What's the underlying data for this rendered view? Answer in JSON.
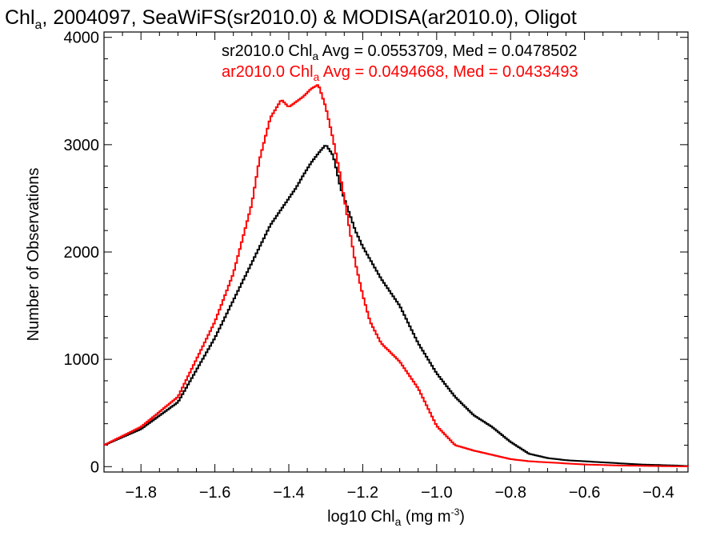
{
  "chart_data": {
    "type": "line",
    "title": {
      "prefix": "Chl",
      "sub": "a",
      "rest": ", 2004097, SeaWiFS(sr2010.0) & MODISA(ar2010.0), Oligot"
    },
    "xlabel": {
      "prefix": "log10 Chl",
      "sub": "a",
      "mid": " (mg m",
      "sup": "-3",
      "end": ")"
    },
    "ylabel": "Number of Observations",
    "xlim": [
      -1.9,
      -0.32
    ],
    "ylim": [
      -50,
      4050
    ],
    "x_ticks": [
      -1.8,
      -1.6,
      -1.4,
      -1.2,
      -1.0,
      -0.8,
      -0.6,
      -0.4
    ],
    "x_tick_labels": [
      "−1.8",
      "−1.6",
      "−1.4",
      "−1.2",
      "−1.0",
      "−0.8",
      "−0.6",
      "−0.4"
    ],
    "y_ticks": [
      0,
      1000,
      2000,
      3000,
      4000
    ],
    "y_tick_labels": [
      "0",
      "1000",
      "2000",
      "3000",
      "4000"
    ],
    "legend_placement": "top-right",
    "series": [
      {
        "name": "sr2010.0",
        "color": "#000000",
        "stats": {
          "prefix": "sr2010.0 Chl",
          "sub": "a",
          "rest": " Avg = 0.0553709, Med = 0.0478502"
        },
        "x": [
          -1.9,
          -1.8,
          -1.7,
          -1.6,
          -1.55,
          -1.5,
          -1.45,
          -1.4,
          -1.38,
          -1.36,
          -1.34,
          -1.32,
          -1.3,
          -1.28,
          -1.26,
          -1.24,
          -1.22,
          -1.2,
          -1.15,
          -1.1,
          -1.05,
          -1.0,
          -0.95,
          -0.9,
          -0.85,
          -0.8,
          -0.75,
          -0.7,
          -0.65,
          -0.6,
          -0.55,
          -0.5,
          -0.45,
          -0.4,
          -0.35,
          -0.32
        ],
        "y": [
          200,
          350,
          600,
          1200,
          1550,
          1900,
          2250,
          2500,
          2600,
          2720,
          2830,
          2920,
          3000,
          2900,
          2600,
          2400,
          2200,
          2050,
          1750,
          1500,
          1150,
          870,
          650,
          480,
          370,
          230,
          120,
          80,
          60,
          50,
          40,
          30,
          20,
          15,
          10,
          5
        ]
      },
      {
        "name": "ar2010.0",
        "color": "#ff0000",
        "stats": {
          "prefix": "ar2010.0 Chl",
          "sub": "a",
          "rest": " Avg = 0.0494668, Med = 0.0433493"
        },
        "x": [
          -1.9,
          -1.8,
          -1.7,
          -1.6,
          -1.55,
          -1.5,
          -1.48,
          -1.45,
          -1.42,
          -1.4,
          -1.38,
          -1.36,
          -1.34,
          -1.32,
          -1.3,
          -1.28,
          -1.26,
          -1.24,
          -1.22,
          -1.2,
          -1.18,
          -1.15,
          -1.1,
          -1.05,
          -1.0,
          -0.95,
          -0.9,
          -0.85,
          -0.8,
          -0.75,
          -0.7,
          -0.65,
          -0.6,
          -0.55,
          -0.5,
          -0.45,
          -0.4,
          -0.35,
          -0.32
        ],
        "y": [
          200,
          370,
          650,
          1350,
          1800,
          2450,
          2850,
          3250,
          3420,
          3350,
          3400,
          3450,
          3520,
          3560,
          3350,
          3050,
          2700,
          2300,
          1900,
          1600,
          1350,
          1150,
          980,
          730,
          380,
          200,
          150,
          110,
          70,
          50,
          40,
          30,
          20,
          15,
          10,
          8,
          5,
          3,
          2
        ]
      }
    ]
  }
}
